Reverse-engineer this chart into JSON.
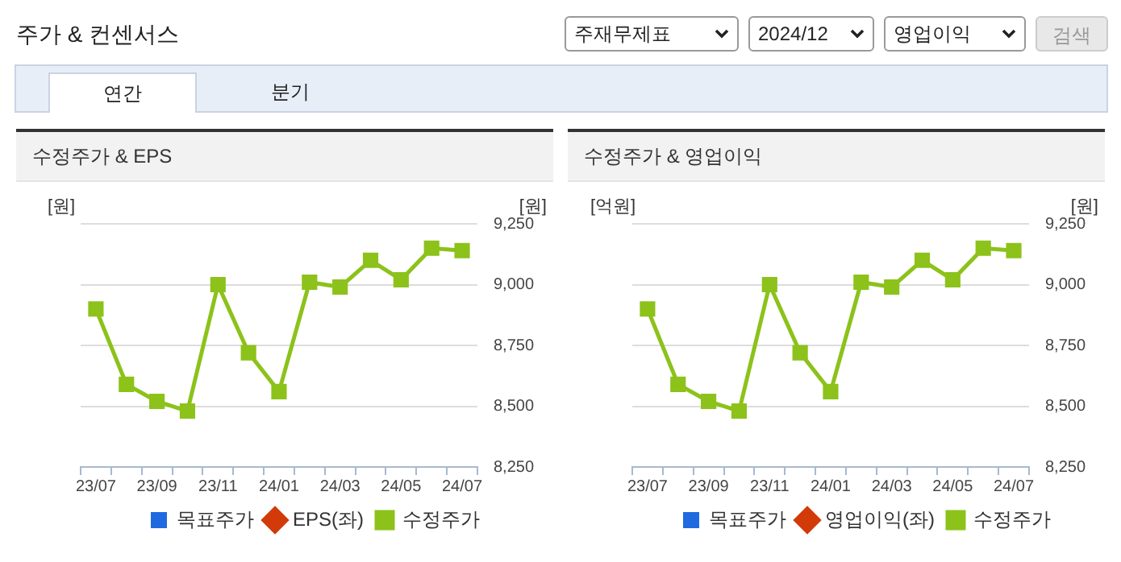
{
  "chart_data": [
    {
      "type": "other",
      "title": "주가 & 컨센서스",
      "annotations": [
        "주재무제표",
        "2024/12",
        "영업이익",
        "검색",
        "연간",
        "분기"
      ]
    },
    {
      "type": "line",
      "title": "수정주가 & EPS",
      "ylabel": "[원]",
      "y2label": "[원]",
      "categories": [
        "23/07",
        null,
        "23/09",
        null,
        "23/11",
        null,
        "24/01",
        null,
        "24/03",
        null,
        "24/05",
        null,
        "24/07"
      ],
      "series": [
        {
          "name": "목표주가",
          "type": "bar",
          "color": "#1f6ae0",
          "values": [
            null,
            null,
            null,
            null,
            null,
            null,
            null,
            null,
            null,
            null,
            null,
            null,
            null
          ]
        },
        {
          "name": "EPS(좌)",
          "type": "line",
          "marker": "diamond",
          "color": "#d23a0a",
          "values": [
            null,
            null,
            null,
            null,
            null,
            null,
            null,
            null,
            null,
            null,
            null,
            null,
            null
          ]
        },
        {
          "name": "수정주가",
          "type": "line",
          "axis": "y2",
          "color": "#8cc21a",
          "values": [
            8900,
            8590,
            8520,
            8480,
            9000,
            8720,
            8560,
            9010,
            8990,
            9100,
            9020,
            9150,
            9140
          ]
        }
      ],
      "y2lim": [
        8250,
        9250
      ],
      "y2ticks": [
        {
          "value": 8250,
          "label": "8,250"
        },
        {
          "value": 8500,
          "label": "8,500"
        },
        {
          "value": 8750,
          "label": "8,750"
        },
        {
          "value": 9000,
          "label": "9,000"
        },
        {
          "value": 9250,
          "label": "9,250"
        }
      ],
      "grid": "y",
      "legend": "bottom",
      "marker": "square"
    },
    {
      "type": "line",
      "title": "수정주가 & 영업이익",
      "ylabel": "[억원]",
      "y2label": "[원]",
      "categories": [
        "23/07",
        null,
        "23/09",
        null,
        "23/11",
        null,
        "24/01",
        null,
        "24/03",
        null,
        "24/05",
        null,
        "24/07"
      ],
      "series": [
        {
          "name": "목표주가",
          "type": "bar",
          "color": "#1f6ae0",
          "values": [
            null,
            null,
            null,
            null,
            null,
            null,
            null,
            null,
            null,
            null,
            null,
            null,
            null
          ]
        },
        {
          "name": "영업이익(좌)",
          "type": "line",
          "marker": "diamond",
          "color": "#d23a0a",
          "values": [
            null,
            null,
            null,
            null,
            null,
            null,
            null,
            null,
            null,
            null,
            null,
            null,
            null
          ]
        },
        {
          "name": "수정주가",
          "type": "line",
          "axis": "y2",
          "color": "#8cc21a",
          "values": [
            8900,
            8590,
            8520,
            8480,
            9000,
            8720,
            8560,
            9010,
            8990,
            9100,
            9020,
            9150,
            9140
          ]
        }
      ],
      "y2lim": [
        8250,
        9250
      ],
      "y2ticks": [
        {
          "value": 8250,
          "label": "8,250"
        },
        {
          "value": 8500,
          "label": "8,500"
        },
        {
          "value": 8750,
          "label": "8,750"
        },
        {
          "value": 9000,
          "label": "9,000"
        },
        {
          "value": 9250,
          "label": "9,250"
        }
      ],
      "grid": "y",
      "legend": "bottom",
      "marker": "square"
    }
  ]
}
